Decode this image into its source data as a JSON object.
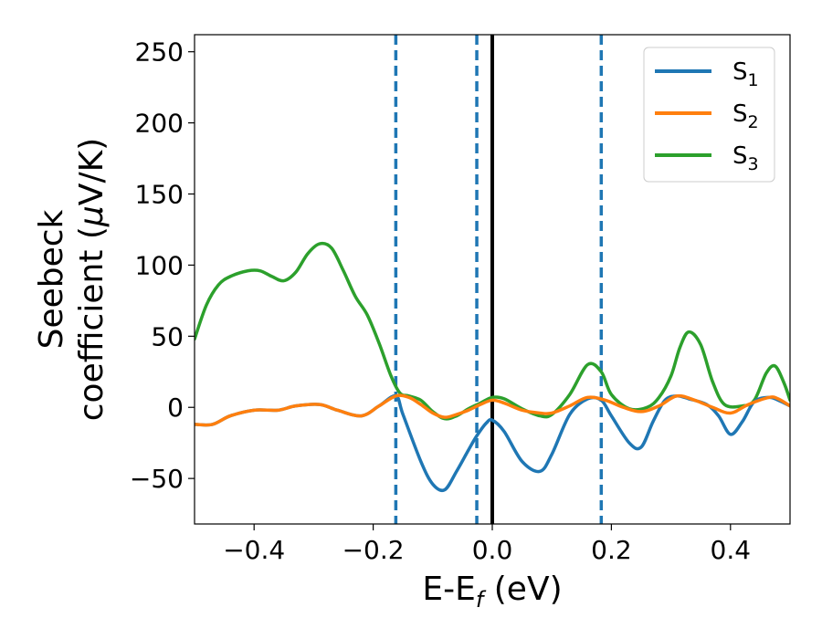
{
  "chart_data": {
    "type": "line",
    "xlabel": "E-E",
    "xlabel_sub": "f",
    "xlabel_unit": " (eV)",
    "ylabel_line1": "Seebeck",
    "ylabel_line2": "coefficient  (",
    "ylabel_mu": "μ",
    "ylabel_unit": "V/K)",
    "xlim": [
      -0.5,
      0.5
    ],
    "ylim": [
      -82,
      262
    ],
    "xticks": [
      -0.4,
      -0.2,
      0.0,
      0.2,
      0.4
    ],
    "xtick_labels": [
      "−0.4",
      "−0.2",
      "0.0",
      "0.2",
      "0.4"
    ],
    "yticks": [
      -50,
      0,
      50,
      100,
      150,
      200,
      250
    ],
    "ytick_labels": [
      "−50",
      "0",
      "50",
      "100",
      "150",
      "200",
      "250"
    ],
    "legend_position": "top-right",
    "vertical_lines": [
      {
        "x": -0.162,
        "style": "dashed",
        "color": "#1f77b4"
      },
      {
        "x": -0.026,
        "style": "dashed",
        "color": "#1f77b4"
      },
      {
        "x": 0.0,
        "style": "solid",
        "color": "#000000"
      },
      {
        "x": 0.183,
        "style": "dashed",
        "color": "#1f77b4"
      }
    ],
    "series": [
      {
        "name": "S",
        "sub": "1",
        "color": "#1f77b4",
        "x": [
          -0.5,
          -0.47,
          -0.44,
          -0.4,
          -0.36,
          -0.33,
          -0.29,
          -0.26,
          -0.22,
          -0.19,
          -0.162,
          -0.15,
          -0.12,
          -0.1,
          -0.08,
          -0.06,
          -0.04,
          -0.026,
          -0.01,
          0.0,
          0.02,
          0.05,
          0.08,
          0.1,
          0.13,
          0.16,
          0.183,
          0.2,
          0.23,
          0.25,
          0.27,
          0.29,
          0.31,
          0.33,
          0.36,
          0.38,
          0.4,
          0.42,
          0.44,
          0.465,
          0.48,
          0.5
        ],
        "y": [
          -12,
          -12,
          -6,
          -2,
          -2,
          1,
          2,
          -2,
          -6,
          1,
          8,
          -5,
          -38,
          -54,
          -58,
          -45,
          -30,
          -20,
          -11,
          -9,
          -17,
          -38,
          -45,
          -33,
          -5,
          6,
          5,
          -6,
          -25,
          -28,
          -10,
          5,
          8,
          6,
          2,
          -6,
          -19,
          -10,
          4,
          7,
          5,
          1
        ]
      },
      {
        "name": "S",
        "sub": "2",
        "color": "#ff7f0e",
        "x": [
          -0.5,
          -0.47,
          -0.44,
          -0.4,
          -0.36,
          -0.33,
          -0.29,
          -0.26,
          -0.22,
          -0.19,
          -0.162,
          -0.14,
          -0.12,
          -0.1,
          -0.08,
          -0.06,
          -0.04,
          -0.02,
          0.0,
          0.02,
          0.05,
          0.08,
          0.1,
          0.13,
          0.16,
          0.19,
          0.22,
          0.25,
          0.28,
          0.31,
          0.34,
          0.37,
          0.4,
          0.43,
          0.465,
          0.48,
          0.5
        ],
        "y": [
          -12,
          -12,
          -6,
          -2,
          -2,
          1,
          2,
          -2,
          -6,
          1,
          8,
          7,
          2,
          -4,
          -7,
          -5,
          -2,
          2,
          5,
          3,
          -2,
          -4,
          -4,
          1,
          7,
          5,
          0,
          -3,
          1,
          8,
          5,
          0,
          -4,
          2,
          7,
          6,
          1
        ]
      },
      {
        "name": "S",
        "sub": "3",
        "color": "#2ca02c",
        "x": [
          -0.5,
          -0.48,
          -0.46,
          -0.44,
          -0.41,
          -0.39,
          -0.37,
          -0.35,
          -0.33,
          -0.31,
          -0.29,
          -0.27,
          -0.25,
          -0.23,
          -0.21,
          -0.19,
          -0.17,
          -0.155,
          -0.14,
          -0.12,
          -0.1,
          -0.08,
          -0.06,
          -0.04,
          -0.02,
          0.0,
          0.02,
          0.05,
          0.08,
          0.1,
          0.13,
          0.16,
          0.183,
          0.2,
          0.23,
          0.26,
          0.28,
          0.3,
          0.315,
          0.33,
          0.35,
          0.37,
          0.39,
          0.42,
          0.44,
          0.46,
          0.475,
          0.49,
          0.5
        ],
        "y": [
          48,
          72,
          86,
          92,
          96,
          96,
          92,
          89,
          95,
          108,
          115,
          112,
          96,
          78,
          65,
          45,
          22,
          10,
          8,
          5,
          -3,
          -8,
          -6,
          -1,
          3,
          7,
          6,
          -1,
          -6,
          -5,
          9,
          30,
          25,
          9,
          -1,
          0,
          7,
          22,
          42,
          53,
          44,
          18,
          2,
          1,
          5,
          24,
          29,
          17,
          5
        ]
      }
    ]
  }
}
